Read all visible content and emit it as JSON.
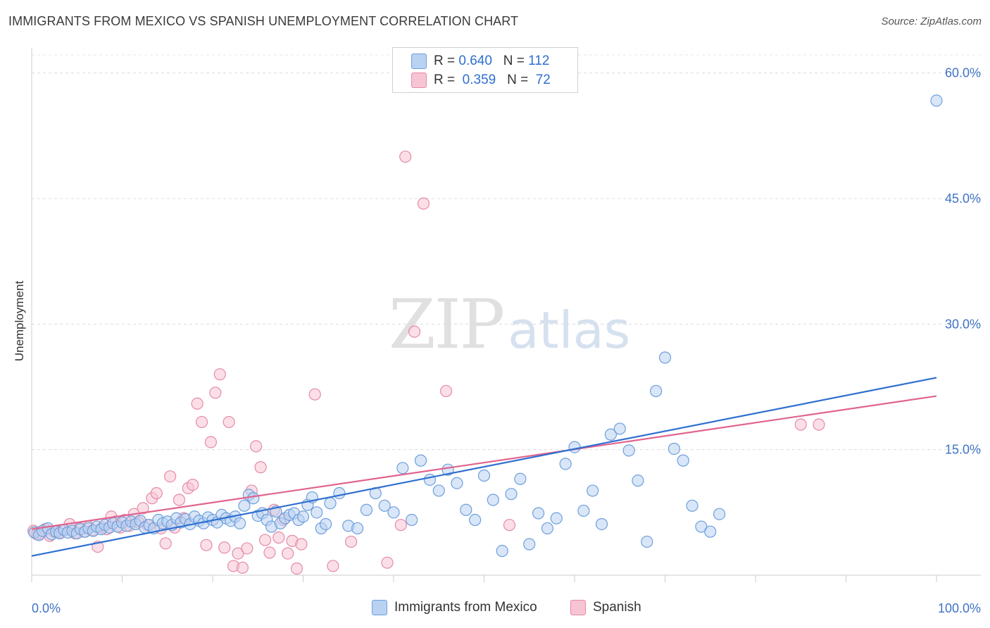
{
  "header": {
    "title": "IMMIGRANTS FROM MEXICO VS SPANISH UNEMPLOYMENT CORRELATION CHART",
    "source": "Source: ZipAtlas.com"
  },
  "watermark": {
    "zip": "ZIP",
    "atlas": "atlas"
  },
  "legend": {
    "rows": [
      {
        "r_label": "R =",
        "r_value": "0.640",
        "n_label": "N =",
        "n_value": "112"
      },
      {
        "r_label": "R =",
        "r_value": "0.359",
        "n_label": "N =",
        "n_value": "72"
      }
    ]
  },
  "chart_data": {
    "type": "scatter",
    "title": "IMMIGRANTS FROM MEXICO VS SPANISH UNEMPLOYMENT CORRELATION CHART",
    "xlabel": "",
    "ylabel": "Unemployment",
    "xlim": [
      0,
      100
    ],
    "ylim": [
      0,
      63
    ],
    "x_tick_labels": [
      "0.0%",
      "100.0%"
    ],
    "y_ticks": [
      15,
      30,
      45,
      60
    ],
    "y_tick_labels": [
      "15.0%",
      "30.0%",
      "45.0%",
      "60.0%"
    ],
    "grid": true,
    "colors": {
      "mexico_fill": "#b9d2f2",
      "mexico_stroke": "#6d9fdb",
      "mexico_line": "#2e6fd0",
      "spanish_fill": "#f7c4d3",
      "spanish_stroke": "#e58aa8",
      "spanish_line": "#e0648e"
    },
    "series": [
      {
        "name": "Immigrants from Mexico",
        "color": "#6d9fdb",
        "trend": {
          "x": [
            0,
            100
          ],
          "y": [
            2.3,
            23.6
          ]
        },
        "points": [
          [
            0.3,
            5.1
          ],
          [
            0.8,
            4.8
          ],
          [
            1.2,
            5.3
          ],
          [
            1.8,
            5.6
          ],
          [
            2.2,
            4.9
          ],
          [
            2.7,
            5.2
          ],
          [
            3.1,
            5.0
          ],
          [
            3.6,
            5.4
          ],
          [
            4.0,
            5.1
          ],
          [
            4.5,
            5.3
          ],
          [
            5.0,
            5.0
          ],
          [
            5.4,
            5.5
          ],
          [
            5.9,
            5.2
          ],
          [
            6.3,
            5.6
          ],
          [
            6.8,
            5.3
          ],
          [
            7.2,
            5.8
          ],
          [
            7.7,
            5.5
          ],
          [
            8.1,
            6.0
          ],
          [
            8.6,
            5.7
          ],
          [
            9.0,
            6.2
          ],
          [
            9.5,
            5.8
          ],
          [
            10.0,
            6.3
          ],
          [
            10.5,
            5.9
          ],
          [
            11.0,
            6.4
          ],
          [
            11.5,
            6.1
          ],
          [
            12.0,
            6.5
          ],
          [
            12.5,
            5.7
          ],
          [
            13.0,
            6.0
          ],
          [
            13.5,
            5.6
          ],
          [
            14.0,
            6.6
          ],
          [
            14.5,
            6.2
          ],
          [
            15.0,
            6.4
          ],
          [
            15.5,
            6.0
          ],
          [
            16.0,
            6.8
          ],
          [
            16.5,
            6.3
          ],
          [
            17.0,
            6.7
          ],
          [
            17.5,
            6.1
          ],
          [
            18.0,
            7.0
          ],
          [
            18.5,
            6.5
          ],
          [
            19.0,
            6.2
          ],
          [
            19.5,
            6.9
          ],
          [
            20.0,
            6.6
          ],
          [
            20.5,
            6.3
          ],
          [
            21.0,
            7.2
          ],
          [
            21.5,
            6.8
          ],
          [
            22.0,
            6.5
          ],
          [
            22.5,
            7.0
          ],
          [
            23.0,
            6.2
          ],
          [
            23.5,
            8.3
          ],
          [
            24.0,
            9.6
          ],
          [
            24.5,
            9.2
          ],
          [
            25.0,
            7.1
          ],
          [
            25.5,
            7.4
          ],
          [
            26.0,
            6.6
          ],
          [
            26.5,
            5.8
          ],
          [
            27.0,
            7.6
          ],
          [
            27.5,
            6.2
          ],
          [
            28.0,
            6.8
          ],
          [
            28.5,
            7.2
          ],
          [
            29.0,
            7.4
          ],
          [
            29.5,
            6.6
          ],
          [
            30.0,
            7.0
          ],
          [
            30.5,
            8.4
          ],
          [
            31.0,
            9.3
          ],
          [
            31.5,
            7.5
          ],
          [
            32.0,
            5.6
          ],
          [
            32.5,
            6.1
          ],
          [
            33.0,
            8.6
          ],
          [
            34.0,
            9.8
          ],
          [
            35.0,
            5.9
          ],
          [
            36.0,
            5.6
          ],
          [
            37.0,
            7.8
          ],
          [
            38.0,
            9.8
          ],
          [
            39.0,
            8.3
          ],
          [
            40.0,
            7.5
          ],
          [
            41.0,
            12.8
          ],
          [
            42.0,
            6.6
          ],
          [
            43.0,
            13.7
          ],
          [
            44.0,
            11.4
          ],
          [
            45.0,
            10.1
          ],
          [
            46.0,
            12.6
          ],
          [
            47.0,
            11.0
          ],
          [
            48.0,
            7.8
          ],
          [
            49.0,
            6.6
          ],
          [
            50.0,
            11.9
          ],
          [
            51.0,
            9.0
          ],
          [
            52.0,
            2.9
          ],
          [
            53.0,
            9.7
          ],
          [
            54.0,
            11.5
          ],
          [
            55.0,
            3.7
          ],
          [
            56.0,
            7.4
          ],
          [
            57.0,
            5.6
          ],
          [
            58.0,
            6.8
          ],
          [
            59.0,
            13.3
          ],
          [
            60.0,
            15.3
          ],
          [
            61.0,
            7.7
          ],
          [
            62.0,
            10.1
          ],
          [
            63.0,
            6.1
          ],
          [
            64.0,
            16.8
          ],
          [
            65.0,
            17.5
          ],
          [
            66.0,
            14.9
          ],
          [
            67.0,
            11.3
          ],
          [
            68.0,
            4.0
          ],
          [
            69.0,
            22.0
          ],
          [
            70.0,
            26.0
          ],
          [
            71.0,
            15.1
          ],
          [
            72.0,
            13.7
          ],
          [
            73.0,
            8.3
          ],
          [
            74.0,
            5.8
          ],
          [
            75.0,
            5.2
          ],
          [
            76.0,
            7.3
          ],
          [
            100.0,
            56.7
          ]
        ]
      },
      {
        "name": "Spanish",
        "color": "#e58aa8",
        "trend": {
          "x": [
            0,
            100
          ],
          "y": [
            5.5,
            21.4
          ]
        },
        "points": [
          [
            0.2,
            5.3
          ],
          [
            0.6,
            4.9
          ],
          [
            1.0,
            5.0
          ],
          [
            1.5,
            5.5
          ],
          [
            2.0,
            4.7
          ],
          [
            2.5,
            5.2
          ],
          [
            3.0,
            5.1
          ],
          [
            3.5,
            5.4
          ],
          [
            4.2,
            6.1
          ],
          [
            4.8,
            5.0
          ],
          [
            5.3,
            5.6
          ],
          [
            5.8,
            5.2
          ],
          [
            6.3,
            5.8
          ],
          [
            6.8,
            5.4
          ],
          [
            7.3,
            3.4
          ],
          [
            7.8,
            5.7
          ],
          [
            8.3,
            5.5
          ],
          [
            8.8,
            7.0
          ],
          [
            9.3,
            6.4
          ],
          [
            9.8,
            5.7
          ],
          [
            10.3,
            6.6
          ],
          [
            10.8,
            5.9
          ],
          [
            11.3,
            7.3
          ],
          [
            11.8,
            6.3
          ],
          [
            12.3,
            8.0
          ],
          [
            12.8,
            6.0
          ],
          [
            13.3,
            9.2
          ],
          [
            13.8,
            9.8
          ],
          [
            14.3,
            5.6
          ],
          [
            14.8,
            3.8
          ],
          [
            15.3,
            11.8
          ],
          [
            15.8,
            5.7
          ],
          [
            16.3,
            9.0
          ],
          [
            16.8,
            6.8
          ],
          [
            17.3,
            10.4
          ],
          [
            17.8,
            10.8
          ],
          [
            18.3,
            20.5
          ],
          [
            18.8,
            18.3
          ],
          [
            19.3,
            3.6
          ],
          [
            19.8,
            15.9
          ],
          [
            20.3,
            21.8
          ],
          [
            20.8,
            24.0
          ],
          [
            21.3,
            3.3
          ],
          [
            21.8,
            18.3
          ],
          [
            22.3,
            1.1
          ],
          [
            22.8,
            2.6
          ],
          [
            23.3,
            0.9
          ],
          [
            23.8,
            3.2
          ],
          [
            24.3,
            10.1
          ],
          [
            24.8,
            15.4
          ],
          [
            25.3,
            12.9
          ],
          [
            25.8,
            4.2
          ],
          [
            26.3,
            2.7
          ],
          [
            26.8,
            7.8
          ],
          [
            27.3,
            4.5
          ],
          [
            27.8,
            6.6
          ],
          [
            28.3,
            2.6
          ],
          [
            28.8,
            4.1
          ],
          [
            29.3,
            0.8
          ],
          [
            29.8,
            3.7
          ],
          [
            31.3,
            21.6
          ],
          [
            33.3,
            1.1
          ],
          [
            35.3,
            4.0
          ],
          [
            39.3,
            1.5
          ],
          [
            40.8,
            6.0
          ],
          [
            41.3,
            50.0
          ],
          [
            42.3,
            29.1
          ],
          [
            43.3,
            44.4
          ],
          [
            45.8,
            22.0
          ],
          [
            52.8,
            6.0
          ],
          [
            85.0,
            18.0
          ],
          [
            87.0,
            18.0
          ]
        ]
      }
    ]
  },
  "bottom_legend": {
    "items": [
      {
        "label": "Immigrants from Mexico"
      },
      {
        "label": "Spanish"
      }
    ]
  }
}
